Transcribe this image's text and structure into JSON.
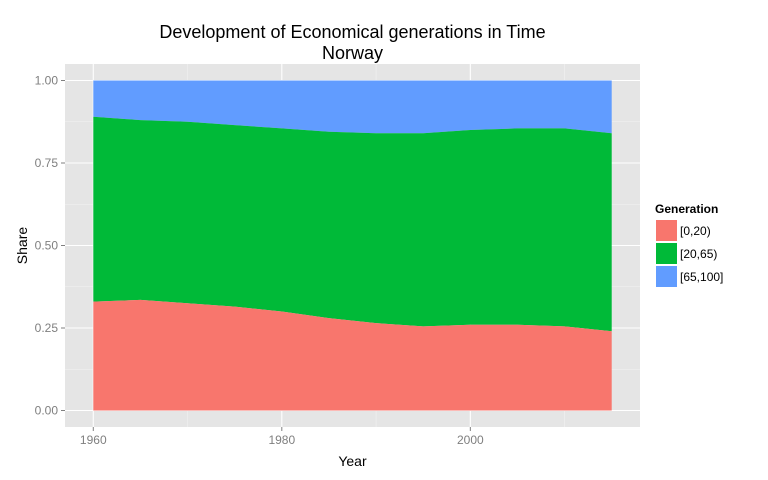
{
  "chart_data": {
    "type": "area",
    "stacked": true,
    "title": "Development of Economical generations in Time",
    "subtitle": "Norway",
    "xlabel": "Year",
    "ylabel": "Share",
    "xlim": [
      1957,
      2018
    ],
    "ylim": [
      -0.05,
      1.05
    ],
    "x_ticks": [
      1960,
      1980,
      2000
    ],
    "y_ticks": [
      0.0,
      0.25,
      0.5,
      0.75,
      1.0
    ],
    "y_tick_labels": [
      "0.00",
      "0.25",
      "0.50",
      "0.75",
      "1.00"
    ],
    "grid": true,
    "legend": {
      "title": "Generation",
      "position": "right"
    },
    "x": [
      1960,
      1965,
      1970,
      1975,
      1980,
      1985,
      1990,
      1995,
      2000,
      2005,
      2010,
      2015
    ],
    "series": [
      {
        "name": "[0,20)",
        "color": "#F8766D",
        "values": [
          0.33,
          0.335,
          0.325,
          0.315,
          0.3,
          0.28,
          0.265,
          0.255,
          0.26,
          0.26,
          0.255,
          0.24
        ]
      },
      {
        "name": "[20,65)",
        "color": "#00BA38",
        "values": [
          0.56,
          0.545,
          0.55,
          0.55,
          0.555,
          0.565,
          0.575,
          0.585,
          0.59,
          0.595,
          0.6,
          0.6
        ]
      },
      {
        "name": "[65,100]",
        "color": "#619CFF",
        "values": [
          0.11,
          0.12,
          0.125,
          0.135,
          0.145,
          0.155,
          0.16,
          0.16,
          0.15,
          0.145,
          0.145,
          0.16
        ]
      }
    ]
  }
}
